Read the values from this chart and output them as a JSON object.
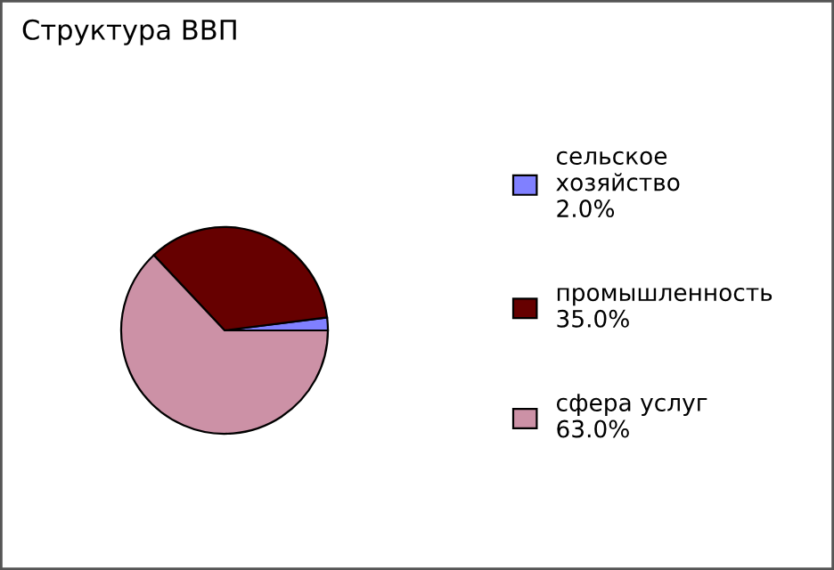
{
  "chart_data": {
    "type": "pie",
    "title": "Структура ВВП",
    "categories": [
      "сельское хозяйство",
      "промышленность",
      "сфера услуг"
    ],
    "values": [
      2.0,
      35.0,
      63.0
    ],
    "value_labels": [
      "2.0%",
      "35.0%",
      "63.0%"
    ],
    "colors": [
      "#8080ff",
      "#660000",
      "#cc91a6"
    ],
    "legend": "right"
  }
}
